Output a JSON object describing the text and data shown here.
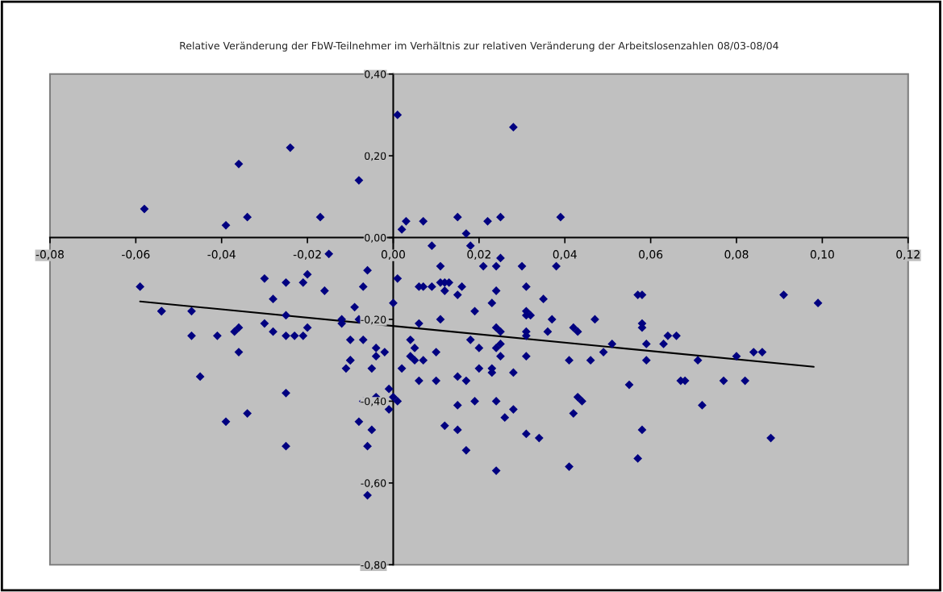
{
  "chart_data": {
    "type": "scatter",
    "title": "Relative Veränderung der FbW-Teilnehmer im Verhältnis zur relativen Veränderung der Arbeitslosenzahlen 08/03-08/04",
    "xlim": [
      -0.08,
      0.12
    ],
    "xticks": [
      {
        "value": -0.08,
        "label": "-0,08"
      },
      {
        "value": -0.06,
        "label": "-0,06"
      },
      {
        "value": -0.04,
        "label": "-0,04"
      },
      {
        "value": -0.02,
        "label": "-0,02"
      },
      {
        "value": 0,
        "label": "0,00"
      },
      {
        "value": 0.02,
        "label": "0,02"
      },
      {
        "value": 0.04,
        "label": "0,04"
      },
      {
        "value": 0.06,
        "label": "0,06"
      },
      {
        "value": 0.08,
        "label": "0,08"
      },
      {
        "value": 0.1,
        "label": "0,10"
      },
      {
        "value": 0.12,
        "label": "0,12"
      }
    ],
    "ylim": [
      -0.8,
      0.4
    ],
    "yticks": [
      {
        "value": -0.8,
        "label": "-0,80"
      },
      {
        "value": -0.6,
        "label": "-0,60"
      },
      {
        "value": -0.4,
        "label": "-0,40"
      },
      {
        "value": -0.2,
        "label": "-0,20"
      },
      {
        "value": 0,
        "label": "0,00"
      },
      {
        "value": 0.2,
        "label": "0,20"
      },
      {
        "value": 0.4,
        "label": "0,40"
      }
    ],
    "grid": false,
    "legend": false,
    "marker": "diamond",
    "series": [
      {
        "color": "#000080",
        "x": [
          -0.058,
          -0.039,
          -0.036,
          -0.034,
          -0.024,
          -0.017,
          -0.008,
          0.001,
          0.002,
          0.003,
          0.007,
          0.015,
          0.017,
          0.022,
          0.025,
          0.028,
          0.039,
          0.009,
          0.018,
          -0.059,
          -0.054,
          -0.054,
          -0.047,
          -0.047,
          -0.041,
          -0.037,
          -0.036,
          -0.036,
          -0.045,
          -0.039,
          -0.034,
          -0.03,
          -0.028,
          -0.03,
          -0.028,
          -0.025,
          -0.025,
          -0.025,
          -0.023,
          -0.025,
          -0.025,
          -0.02,
          -0.021,
          -0.021,
          -0.02,
          -0.016,
          -0.015,
          -0.006,
          -0.007,
          -0.009,
          -0.012,
          -0.012,
          -0.008,
          -0.01,
          -0.007,
          -0.004,
          -0.004,
          -0.002,
          -0.01,
          -0.01,
          -0.011,
          -0.005,
          0.0,
          -0.001,
          0.0,
          -0.004,
          -0.007,
          -0.001,
          -0.008,
          -0.005,
          -0.006,
          -0.006,
          0.001,
          0.001,
          0.006,
          0.007,
          0.009,
          0.011,
          0.012,
          0.013,
          0.012,
          0.016,
          0.015,
          0.024,
          0.023,
          0.031,
          0.035,
          0.031,
          0.031,
          0.032,
          0.037,
          0.019,
          0.006,
          0.011,
          0.024,
          0.025,
          0.031,
          0.031,
          0.036,
          0.042,
          0.043,
          0.047,
          0.004,
          0.005,
          0.004,
          0.005,
          0.007,
          0.01,
          0.002,
          0.006,
          0.01,
          0.018,
          0.02,
          0.024,
          0.025,
          0.025,
          0.02,
          0.023,
          0.023,
          0.028,
          0.031,
          0.015,
          0.017,
          0.041,
          0.046,
          0.049,
          0.051,
          0.059,
          0.059,
          0.057,
          0.058,
          0.058,
          0.058,
          0.055,
          0.015,
          0.019,
          0.024,
          0.028,
          0.026,
          0.012,
          0.015,
          0.031,
          0.034,
          0.017,
          0.024,
          0.041,
          0.043,
          0.044,
          0.042,
          0.058,
          0.057,
          0.011,
          0.021,
          0.024,
          0.025,
          0.03,
          0.038,
          0.091,
          0.099,
          0.064,
          0.066,
          0.063,
          0.071,
          0.08,
          0.084,
          0.086,
          0.067,
          0.068,
          0.077,
          0.082,
          0.072,
          0.088
        ],
        "values": [
          0.07,
          0.03,
          0.18,
          0.05,
          0.22,
          0.05,
          0.14,
          0.3,
          0.02,
          0.04,
          0.04,
          0.05,
          0.01,
          0.04,
          0.05,
          0.27,
          0.05,
          -0.02,
          -0.02,
          -0.12,
          -0.18,
          -0.18,
          -0.18,
          -0.24,
          -0.24,
          -0.23,
          -0.22,
          -0.28,
          -0.34,
          -0.45,
          -0.43,
          -0.1,
          -0.15,
          -0.21,
          -0.23,
          -0.11,
          -0.19,
          -0.24,
          -0.24,
          -0.38,
          -0.51,
          -0.09,
          -0.11,
          -0.24,
          -0.22,
          -0.13,
          -0.04,
          -0.08,
          -0.12,
          -0.17,
          -0.2,
          -0.21,
          -0.2,
          -0.25,
          -0.25,
          -0.27,
          -0.29,
          -0.28,
          -0.3,
          -0.3,
          -0.32,
          -0.32,
          -0.16,
          -0.37,
          -0.39,
          -0.39,
          -0.4,
          -0.42,
          -0.45,
          -0.47,
          -0.51,
          -0.63,
          -0.1,
          -0.4,
          -0.12,
          -0.12,
          -0.12,
          -0.11,
          -0.11,
          -0.11,
          -0.13,
          -0.12,
          -0.14,
          -0.13,
          -0.16,
          -0.12,
          -0.15,
          -0.18,
          -0.19,
          -0.19,
          -0.2,
          -0.18,
          -0.21,
          -0.2,
          -0.22,
          -0.23,
          -0.23,
          -0.24,
          -0.23,
          -0.22,
          -0.23,
          -0.2,
          -0.25,
          -0.27,
          -0.29,
          -0.3,
          -0.3,
          -0.28,
          -0.32,
          -0.35,
          -0.35,
          -0.25,
          -0.27,
          -0.27,
          -0.26,
          -0.29,
          -0.32,
          -0.32,
          -0.33,
          -0.33,
          -0.29,
          -0.34,
          -0.35,
          -0.3,
          -0.3,
          -0.28,
          -0.26,
          -0.26,
          -0.3,
          -0.14,
          -0.14,
          -0.21,
          -0.22,
          -0.36,
          -0.41,
          -0.4,
          -0.4,
          -0.42,
          -0.44,
          -0.46,
          -0.47,
          -0.48,
          -0.49,
          -0.52,
          -0.57,
          -0.56,
          -0.39,
          -0.4,
          -0.43,
          -0.47,
          -0.54,
          -0.07,
          -0.07,
          -0.07,
          -0.05,
          -0.07,
          -0.07,
          -0.14,
          -0.16,
          -0.24,
          -0.24,
          -0.26,
          -0.3,
          -0.29,
          -0.28,
          -0.28,
          -0.35,
          -0.35,
          -0.35,
          -0.35,
          -0.41,
          -0.49
        ]
      },
      {
        "type": "line",
        "marker": "none",
        "color": "#000000",
        "x": [
          -0.059,
          0.098
        ],
        "values": [
          -0.156,
          -0.316
        ]
      }
    ]
  }
}
